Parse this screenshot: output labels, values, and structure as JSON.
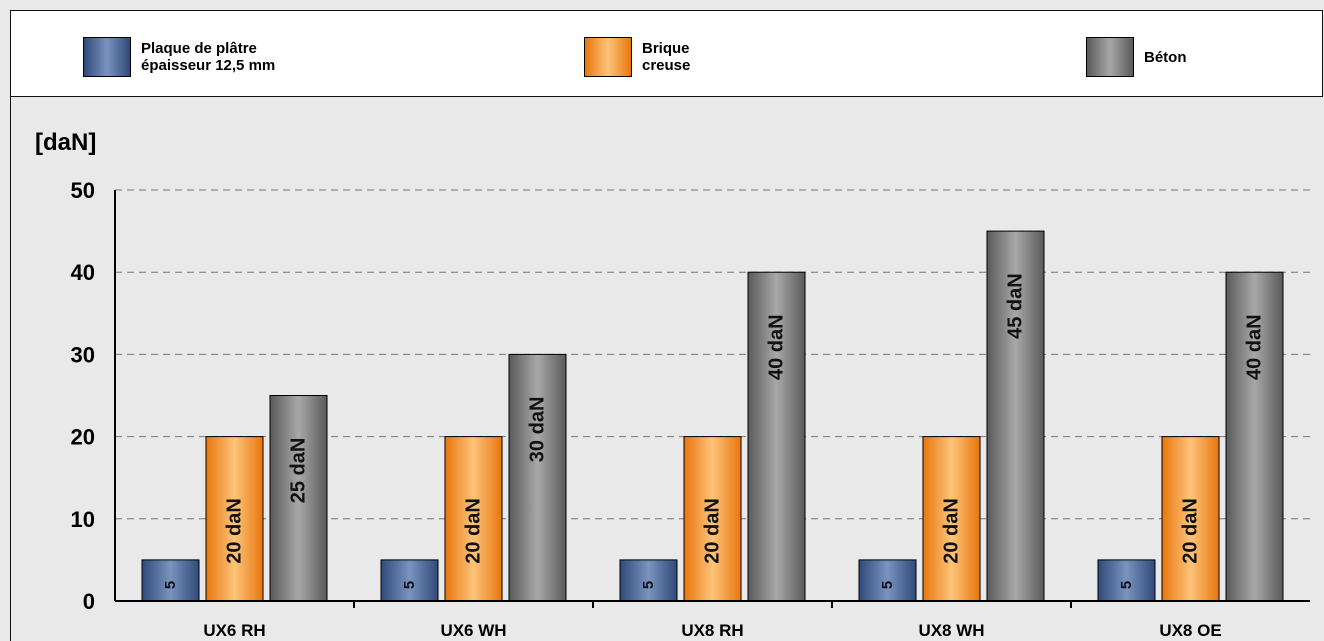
{
  "chart_data": {
    "type": "bar",
    "categories": [
      "UX6 RH",
      "UX6 WH",
      "UX8 RH",
      "UX8 WH",
      "UX8 OE"
    ],
    "series": [
      {
        "name": "Plaque de plâtre\népaisseur 12,5 mm",
        "values": [
          5,
          5,
          5,
          5,
          5
        ],
        "labels": [
          "5",
          "5",
          "5",
          "5",
          "5"
        ],
        "color_light": "#7a93bf",
        "color_dark": "#2f4a7a"
      },
      {
        "name": "Brique\ncreuse",
        "values": [
          20,
          20,
          20,
          20,
          20
        ],
        "labels": [
          "20 daN",
          "20 daN",
          "20 daN",
          "20 daN",
          "20 daN"
        ],
        "color_light": "#fcc47a",
        "color_dark": "#e8760c"
      },
      {
        "name": "Béton",
        "values": [
          25,
          30,
          40,
          45,
          40
        ],
        "labels": [
          "25 daN",
          "30 daN",
          "40 daN",
          "45 daN",
          "40 daN"
        ],
        "color_light": "#a8a8a8",
        "color_dark": "#5a5a5a"
      }
    ],
    "ylabel": "[daN]",
    "yticks": [
      0,
      10,
      20,
      30,
      40,
      50
    ],
    "ylim": [
      0,
      50
    ],
    "grid": true,
    "legend_position": "top"
  }
}
